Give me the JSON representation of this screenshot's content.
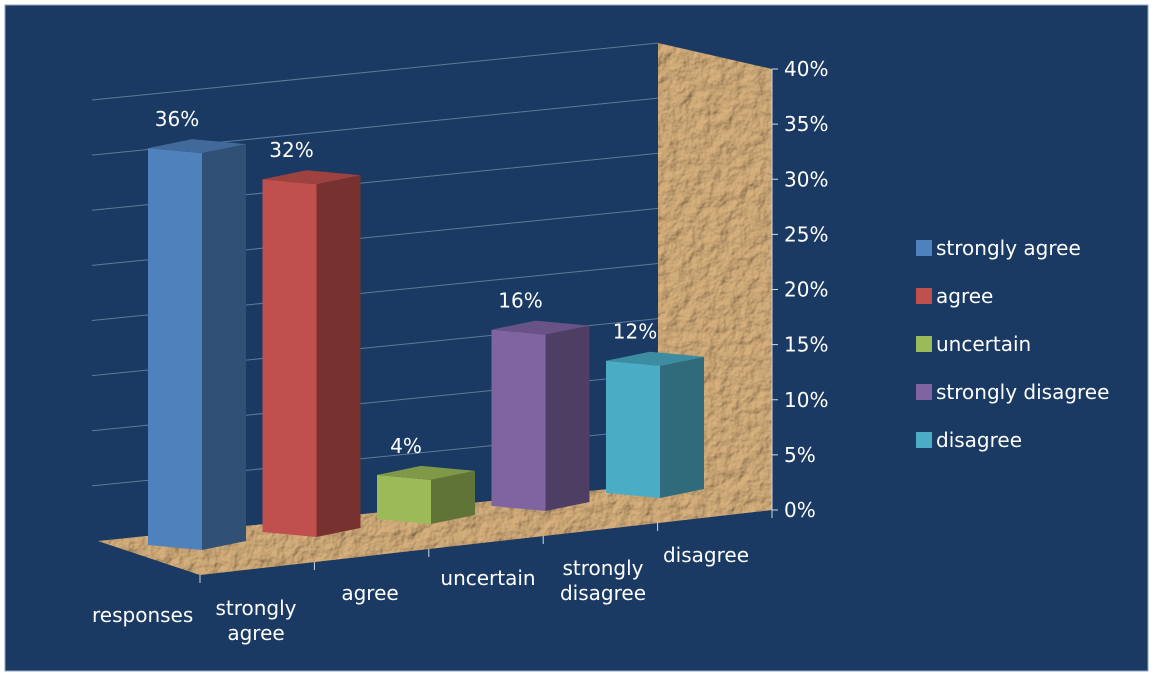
{
  "chart_data": {
    "type": "bar",
    "categories": [
      "strongly agree",
      "agree",
      "uncertain",
      "strongly disagree",
      "disagree"
    ],
    "values": [
      36,
      32,
      4,
      16,
      12
    ],
    "data_labels": [
      "36%",
      "32%",
      "4%",
      "16%",
      "12%"
    ],
    "x_axis_title": "responses",
    "x_tick_labels": [
      [
        "strongly",
        "agree"
      ],
      [
        "agree"
      ],
      [
        "uncertain"
      ],
      [
        "strongly",
        "disagree"
      ],
      [
        "disagree"
      ]
    ],
    "ylim": [
      0,
      40
    ],
    "y_ticks": [
      0,
      5,
      10,
      15,
      20,
      25,
      30,
      35,
      40
    ],
    "y_tick_labels": [
      "0%",
      "5%",
      "10%",
      "15%",
      "20%",
      "25%",
      "30%",
      "35%",
      "40%"
    ],
    "grid": true,
    "legend": {
      "placement": "right",
      "entries": [
        "strongly agree",
        "agree",
        "uncertain",
        "strongly disagree",
        "disagree"
      ]
    },
    "colors": {
      "background": "#1a3a63",
      "border": "#8fa4bf",
      "text": "#ffffff",
      "floor_wall": "#b08a5a",
      "series": [
        "#4f81bd",
        "#c0504d",
        "#9bbb59",
        "#8064a2",
        "#4bacc6"
      ]
    }
  }
}
